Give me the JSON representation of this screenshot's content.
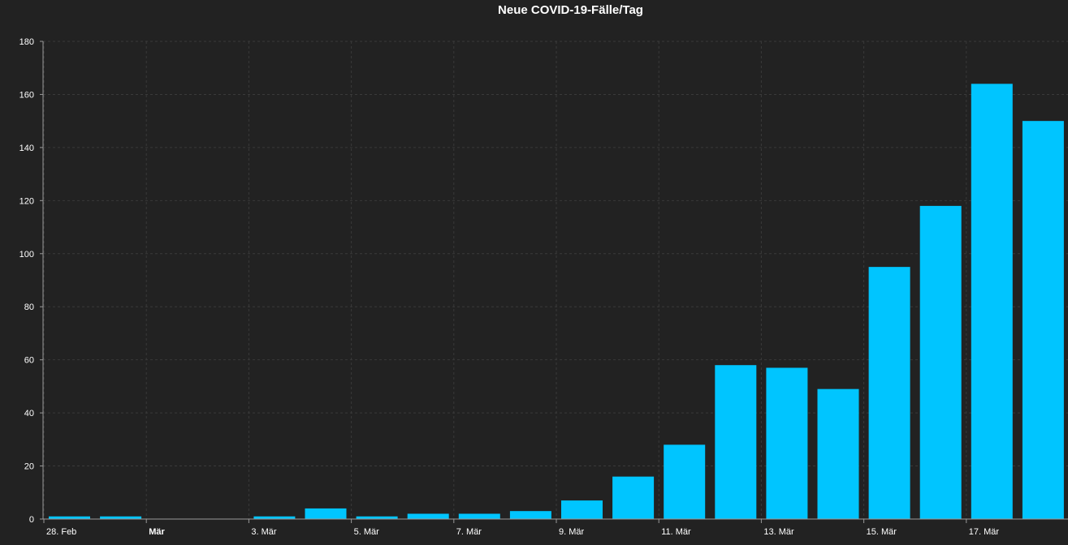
{
  "chart_data": {
    "type": "bar",
    "title": "Neue COVID-19-Fälle/Tag",
    "xlabel": "",
    "ylabel": "",
    "ylim": [
      0,
      180
    ],
    "yticks": [
      0,
      20,
      40,
      60,
      80,
      100,
      120,
      140,
      160,
      180
    ],
    "x_dates": [
      "2020-02-28",
      "2020-02-29",
      "2020-03-01",
      "2020-03-02",
      "2020-03-03",
      "2020-03-04",
      "2020-03-05",
      "2020-03-06",
      "2020-03-07",
      "2020-03-08",
      "2020-03-09",
      "2020-03-10",
      "2020-03-11",
      "2020-03-12",
      "2020-03-13",
      "2020-03-14",
      "2020-03-15",
      "2020-03-16",
      "2020-03-17",
      "2020-03-18"
    ],
    "values": [
      1,
      1,
      0,
      0,
      1,
      4,
      1,
      2,
      2,
      3,
      7,
      16,
      28,
      58,
      57,
      49,
      95,
      118,
      164,
      150
    ],
    "x_tick_labels": [
      {
        "date": "2020-02-28",
        "label": "28. Feb",
        "bold": false
      },
      {
        "date": "2020-03-01",
        "label": "Mär",
        "bold": true
      },
      {
        "date": "2020-03-03",
        "label": "3. Mär",
        "bold": false
      },
      {
        "date": "2020-03-05",
        "label": "5. Mär",
        "bold": false
      },
      {
        "date": "2020-03-07",
        "label": "7. Mär",
        "bold": false
      },
      {
        "date": "2020-03-09",
        "label": "9. Mär",
        "bold": false
      },
      {
        "date": "2020-03-11",
        "label": "11. Mär",
        "bold": false
      },
      {
        "date": "2020-03-13",
        "label": "13. Mär",
        "bold": false
      },
      {
        "date": "2020-03-15",
        "label": "15. Mär",
        "bold": false
      },
      {
        "date": "2020-03-17",
        "label": "17. Mär",
        "bold": false
      }
    ],
    "grid": true,
    "colors": {
      "bar": "#00C5FF",
      "background": "#222222",
      "grid": "#3a3a3a",
      "axis": "#999999",
      "text": "#ffffff"
    }
  }
}
